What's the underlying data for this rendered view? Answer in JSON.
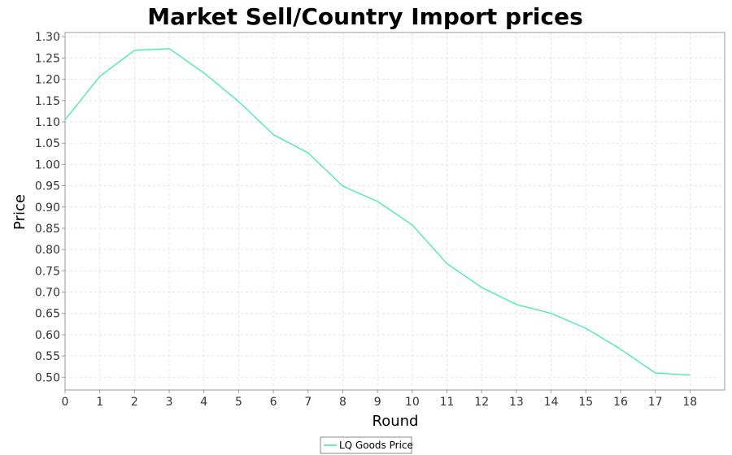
{
  "chart_data": {
    "type": "line",
    "title": "Market Sell/Country Import prices",
    "xlabel": "Round",
    "ylabel": "Price",
    "xlim": [
      0,
      19
    ],
    "ylim": [
      0.47,
      1.31
    ],
    "x_ticks": [
      0,
      1,
      2,
      3,
      4,
      5,
      6,
      7,
      8,
      9,
      10,
      11,
      12,
      13,
      14,
      15,
      16,
      17,
      18
    ],
    "y_ticks": [
      "0.50",
      "0.55",
      "0.60",
      "0.65",
      "0.70",
      "0.75",
      "0.80",
      "0.85",
      "0.90",
      "0.95",
      "1.00",
      "1.05",
      "1.10",
      "1.15",
      "1.20",
      "1.25",
      "1.30"
    ],
    "grid": true,
    "legend_position": "bottom",
    "series": [
      {
        "name": "LQ Goods Price",
        "color": "#2ef0a0",
        "x": [
          0,
          1,
          2,
          3,
          4,
          5,
          6,
          7,
          8,
          9,
          10,
          11,
          12,
          13,
          14,
          15,
          16,
          17,
          18
        ],
        "y": [
          1.105,
          1.207,
          1.268,
          1.272,
          1.215,
          1.148,
          1.07,
          1.027,
          0.949,
          0.913,
          0.858,
          0.767,
          0.711,
          0.671,
          0.65,
          0.615,
          0.566,
          0.51,
          0.505
        ]
      }
    ]
  }
}
